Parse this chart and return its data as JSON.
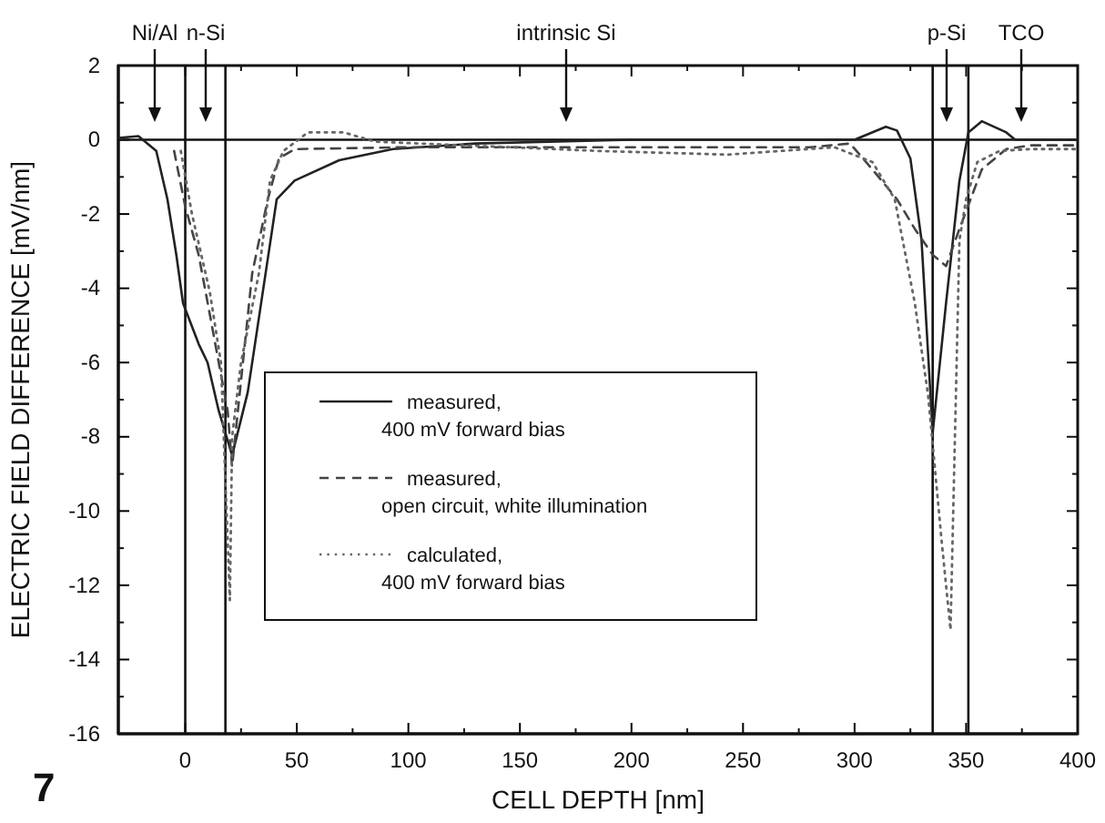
{
  "chart_data": {
    "type": "line",
    "xlabel": "CELL DEPTH [nm]",
    "ylabel": "ELECTRIC FIELD DIFFERENCE [mV/nm]",
    "xlim": [
      -30,
      400
    ],
    "xticks": [
      0,
      50,
      100,
      150,
      200,
      250,
      300,
      350,
      400
    ],
    "ylim": [
      -16,
      2
    ],
    "yticks": [
      -16,
      -14,
      -12,
      -10,
      -8,
      -6,
      -4,
      -2,
      0,
      2
    ],
    "grid": false,
    "legend": "center",
    "marker": "none",
    "series": [
      {
        "name": "measured,\n400 mV forward bias",
        "color": "#222222",
        "line_style": "solid",
        "x": [
          -30,
          -21,
          -13,
          -8,
          -4,
          -1,
          6,
          10,
          15,
          21,
          28,
          36,
          41,
          49,
          69,
          93,
          130,
          200,
          300,
          314,
          319,
          325,
          330,
          335,
          341,
          347,
          351,
          357,
          368,
          372,
          400
        ],
        "values": [
          0.05,
          0.1,
          -0.3,
          -1.6,
          -3.1,
          -4.4,
          -5.5,
          -6.0,
          -7.3,
          -8.5,
          -6.8,
          -3.6,
          -1.6,
          -1.1,
          -0.55,
          -0.25,
          -0.1,
          0,
          0,
          0.35,
          0.25,
          -0.5,
          -2.7,
          -7.9,
          -4.4,
          -1.1,
          0.2,
          0.5,
          0.2,
          0,
          0
        ]
      },
      {
        "name": "measured,\nopen circuit, white illumination",
        "color": "#444444",
        "line_style": "dashed",
        "x": [
          -5,
          0,
          6,
          11,
          15,
          19,
          21,
          30,
          37,
          42,
          49,
          100,
          200,
          280,
          298,
          308,
          319,
          327,
          335,
          341,
          347,
          352,
          357,
          368,
          379,
          400
        ],
        "values": [
          -0.3,
          -1.8,
          -3.1,
          -4.7,
          -6.0,
          -7.3,
          -8.8,
          -3.6,
          -1.6,
          -0.5,
          -0.25,
          -0.2,
          -0.2,
          -0.2,
          -0.1,
          -0.8,
          -1.6,
          -2.4,
          -3.1,
          -3.4,
          -2.4,
          -1.6,
          -0.8,
          -0.25,
          -0.15,
          -0.15
        ]
      },
      {
        "name": "calculated,\n400 mV forward bias",
        "color": "#666666",
        "line_style": "dotted",
        "x": [
          -2,
          3,
          11,
          16,
          20,
          21,
          25,
          33,
          38,
          44,
          55,
          71,
          85,
          185,
          243,
          291,
          308,
          318,
          327,
          333,
          339,
          343,
          347,
          350,
          355,
          365,
          379,
          400
        ],
        "values": [
          -0.3,
          -2.0,
          -4.1,
          -6.0,
          -12.4,
          -8.0,
          -6.0,
          -3.6,
          -1.1,
          -0.3,
          0.2,
          0.2,
          -0.05,
          -0.3,
          -0.4,
          -0.2,
          -0.6,
          -1.6,
          -4.4,
          -6.9,
          -10.8,
          -13.2,
          -2.7,
          -1.6,
          -0.6,
          -0.3,
          -0.25,
          -0.25
        ]
      }
    ],
    "ref_lines": [
      {
        "axis": "x",
        "value": 0
      },
      {
        "axis": "x",
        "value": 18
      },
      {
        "axis": "x",
        "value": 335
      },
      {
        "axis": "x",
        "value": 351
      },
      {
        "axis": "y",
        "value": 0
      }
    ],
    "annotations": [
      "Ni/Al",
      "n-Si",
      "intrinsic Si",
      "p-Si",
      "TCO",
      "7"
    ]
  }
}
